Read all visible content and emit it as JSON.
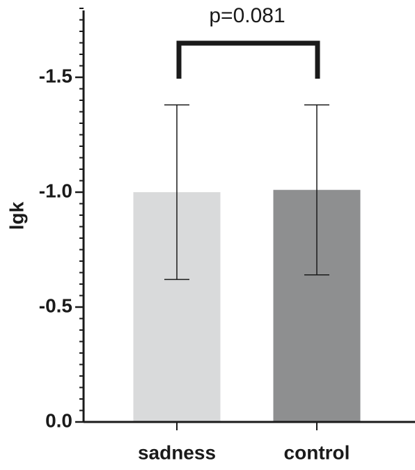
{
  "chart_data": {
    "type": "bar",
    "y_label": "lgk",
    "annotation": "p=0.081",
    "categories": [
      "sadness",
      "control"
    ],
    "values": [
      -1.0,
      -1.01
    ],
    "errors": [
      0.38,
      0.37
    ],
    "colors": [
      "#d9dadb",
      "#8e8f90"
    ],
    "ylim": [
      0,
      -1.8
    ],
    "yticks": [
      {
        "value": 0,
        "label": "0.0"
      },
      -0.5,
      {
        "value": -1,
        "label": "-1.0"
      },
      -1.5
    ],
    "yminorticks": [
      -0.05,
      -0.1,
      -0.15,
      -0.2,
      -0.25,
      -0.3,
      -0.35,
      -0.4,
      -0.45,
      -0.55,
      -0.6,
      -0.65,
      -0.7,
      -0.75,
      -0.8,
      -0.85,
      -0.9,
      -0.95,
      -1.05,
      -1.1,
      -1.15,
      -1.2,
      -1.25,
      -1.3,
      -1.35,
      -1.4,
      -1.45,
      -1.55,
      -1.6,
      -1.65,
      -1.7,
      -1.75,
      -1.8
    ]
  }
}
